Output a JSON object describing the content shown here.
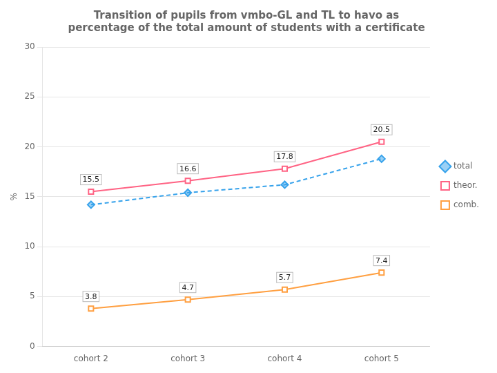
{
  "chart_data": {
    "type": "line",
    "title": [
      "Transition of pupils from vmbo-GL and TL to havo as",
      "percentage of the total amount of students with a certificate"
    ],
    "categories": [
      "cohort 2",
      "cohort 3",
      "cohort 4",
      "cohort 5"
    ],
    "series": [
      {
        "name": "total",
        "values": [
          14.2,
          15.4,
          16.2,
          18.8
        ],
        "marker": "diamond",
        "line_style": "dashed"
      },
      {
        "name": "theor.",
        "values": [
          15.5,
          16.6,
          17.8,
          20.5
        ],
        "marker": "square",
        "line_style": "solid",
        "data_labels": true
      },
      {
        "name": "comb.",
        "values": [
          3.8,
          4.7,
          5.7,
          7.4
        ],
        "marker": "square",
        "line_style": "solid",
        "data_labels": true
      }
    ],
    "ylabel": "%",
    "ylim": [
      0,
      30
    ],
    "yticks": [
      0,
      5,
      10,
      15,
      20,
      25,
      30
    ],
    "grid": true,
    "legend": "right"
  }
}
